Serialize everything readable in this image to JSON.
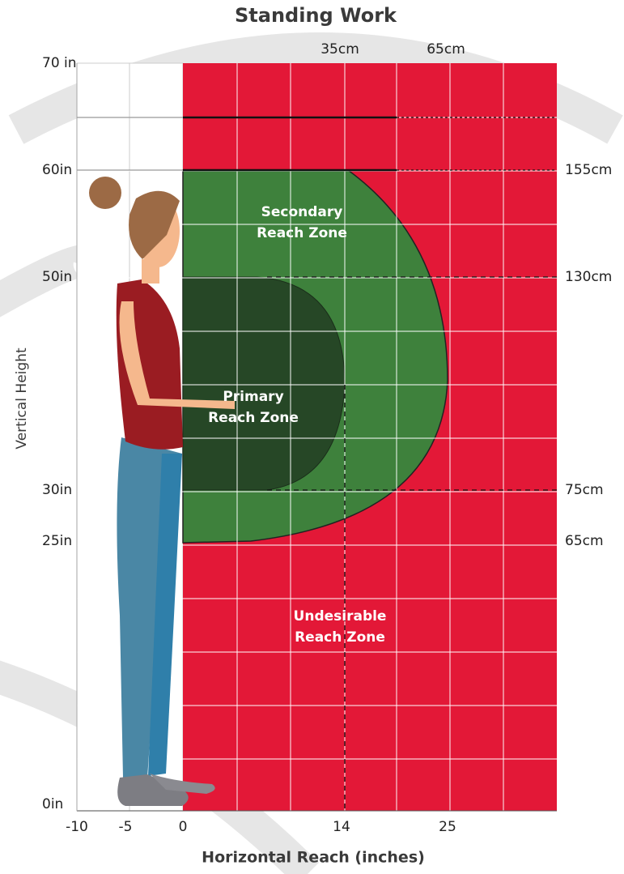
{
  "header": {
    "title": "Standing Work"
  },
  "top_labels": [
    "35cm",
    "65cm"
  ],
  "left_labels": [
    "70 in",
    "60in",
    "50in",
    "30in",
    "25in",
    "0in"
  ],
  "right_labels": [
    "155cm",
    "130cm",
    "75cm",
    "65cm"
  ],
  "bottom_labels": [
    "-10",
    "-5",
    "0",
    "14",
    "25"
  ],
  "x_axis_title": "Horizontal Reach (inches)",
  "y_axis_title": "Vertical Height",
  "zones": {
    "secondary": [
      "Secondary",
      "Reach Zone"
    ],
    "primary": [
      "Primary",
      "Reach Zone"
    ],
    "undesirable": [
      "Undesirable",
      "Reach Zone"
    ]
  }
}
